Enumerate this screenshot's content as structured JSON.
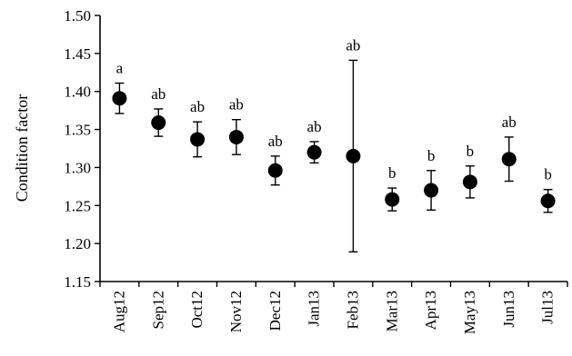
{
  "chart_data": {
    "type": "scatter",
    "title": "",
    "xlabel": "",
    "ylabel": "Condition factor",
    "ylim": [
      1.15,
      1.5
    ],
    "yticks": [
      "1.15",
      "1.20",
      "1.25",
      "1.30",
      "1.35",
      "1.40",
      "1.45",
      "1.50"
    ],
    "grid": false,
    "legend": "none",
    "categories": [
      "Aug12",
      "Sep12",
      "Oct12",
      "Nov12",
      "Dec12",
      "Jan13",
      "Feb13",
      "Mar13",
      "Apr13",
      "May13",
      "Jun13",
      "Jul13"
    ],
    "series": [
      {
        "values": [
          1.391,
          1.359,
          1.337,
          1.34,
          1.296,
          1.32,
          1.315,
          1.258,
          1.27,
          1.281,
          1.311,
          1.256
        ],
        "error": [
          0.02,
          0.018,
          0.023,
          0.023,
          0.019,
          0.014,
          0.126,
          0.015,
          0.026,
          0.021,
          0.029,
          0.015
        ],
        "labels": [
          "a",
          "ab",
          "ab",
          "ab",
          "ab",
          "ab",
          "ab",
          "b",
          "b",
          "b",
          "ab",
          "b"
        ],
        "color": "#000000"
      }
    ]
  }
}
